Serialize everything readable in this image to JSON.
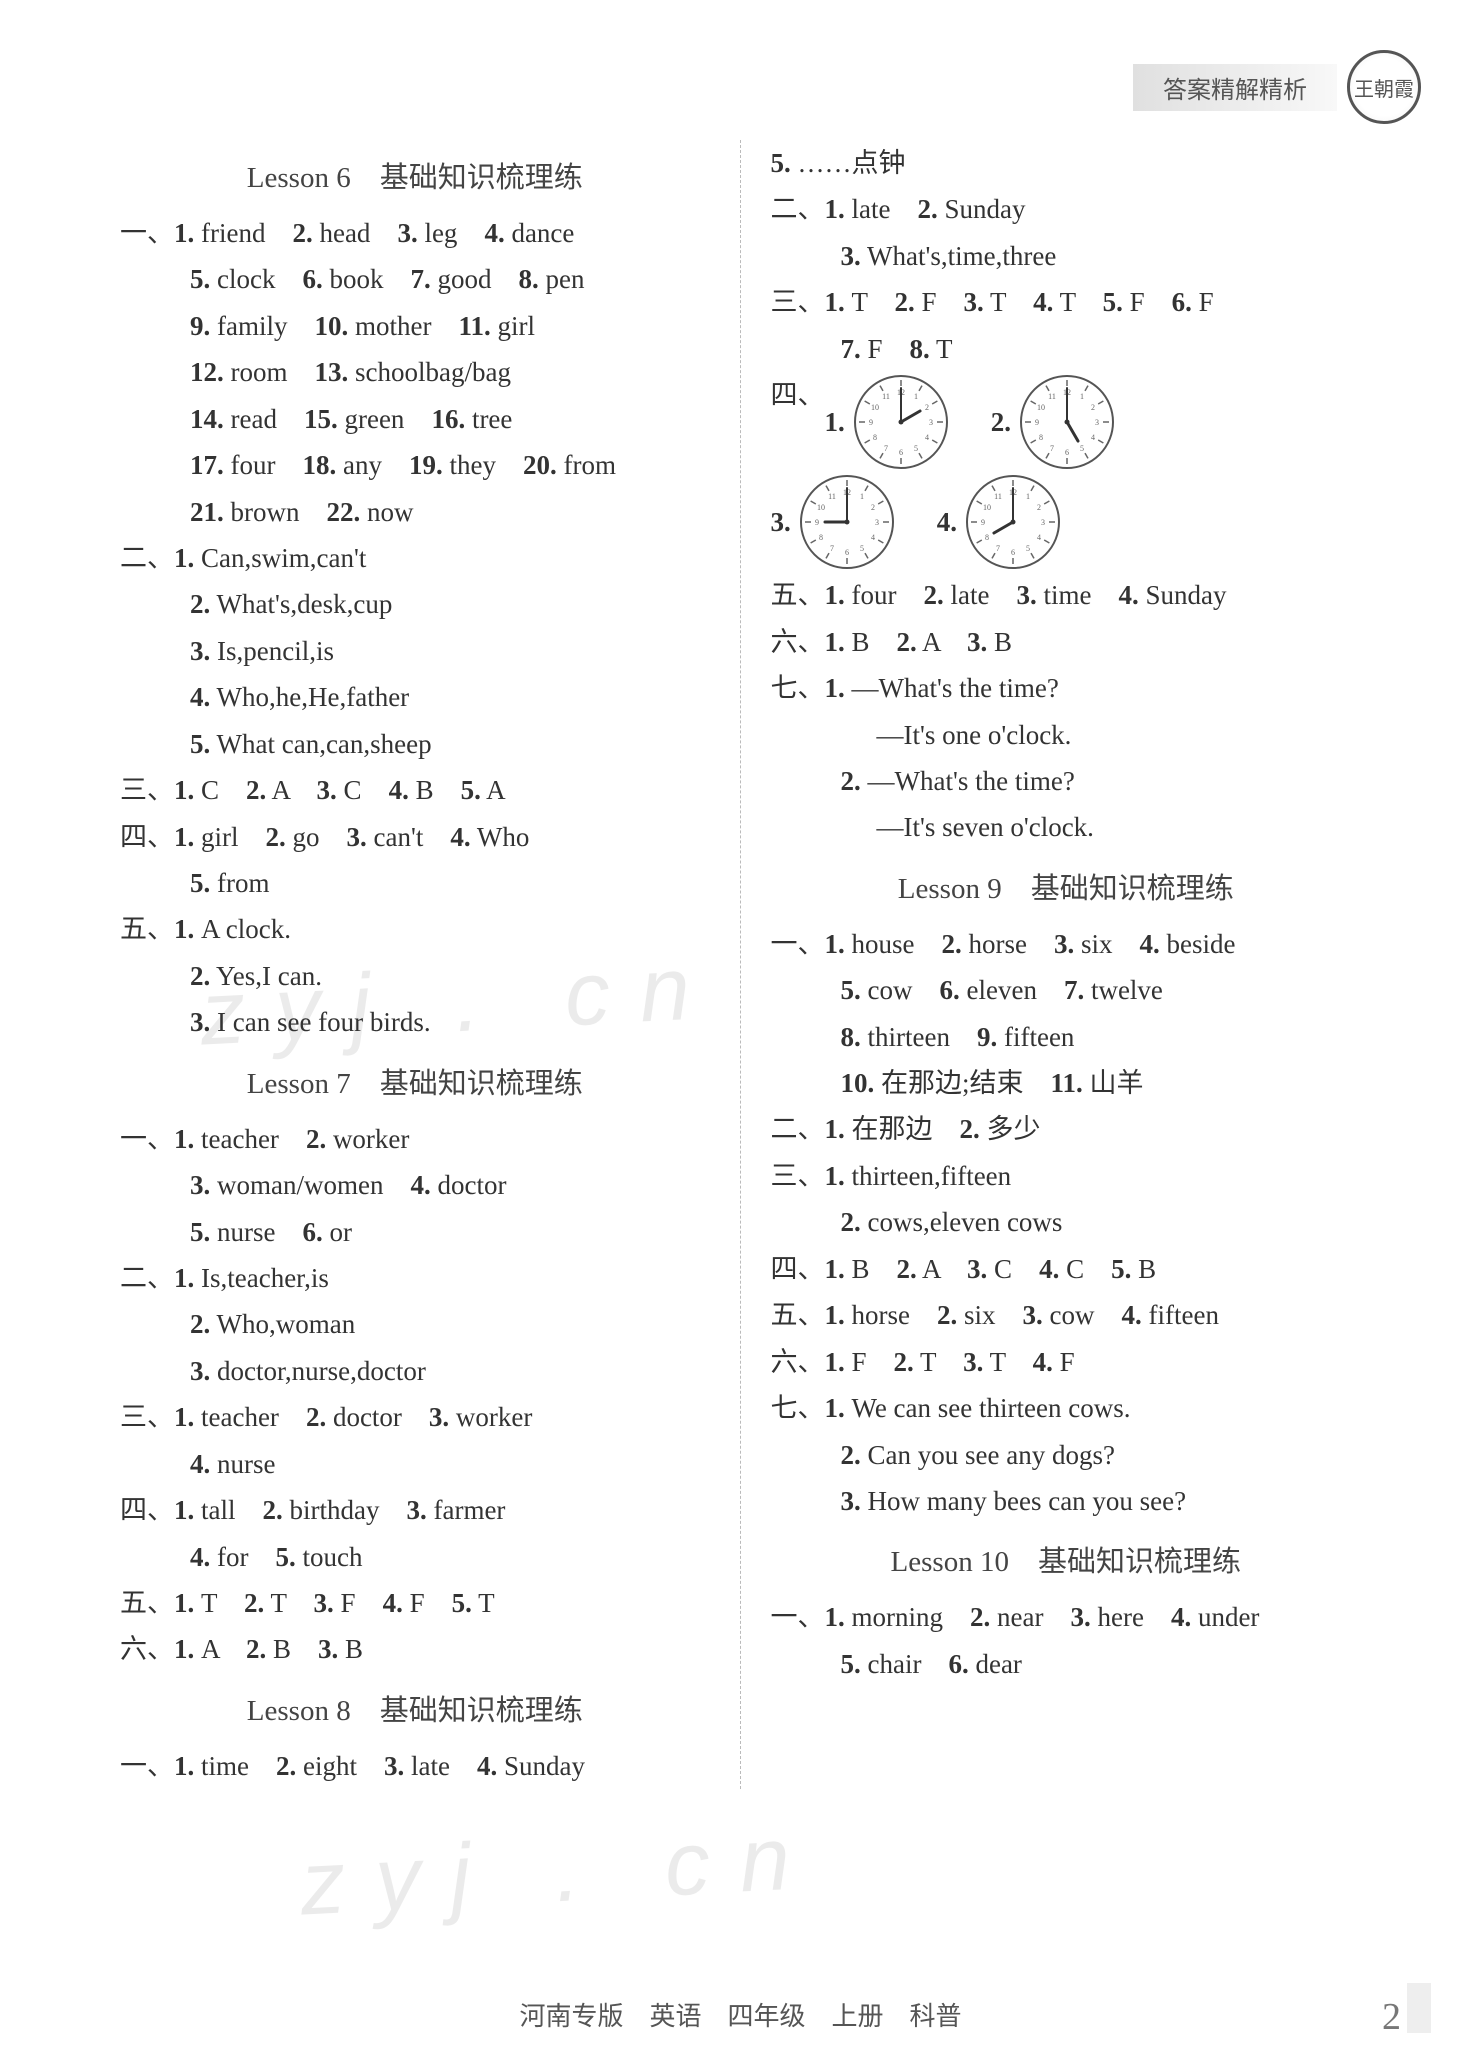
{
  "header": {
    "banner": "答案精解精析",
    "logo": "王朝霞"
  },
  "footer": {
    "text": "河南专版　英语　四年级　上册　科普",
    "page": "2"
  },
  "watermarks": [
    "zyj . cn",
    "zyj . cn"
  ],
  "left": {
    "l6": {
      "title": "Lesson 6　基础知识梳理练",
      "s1": [
        [
          [
            "1.",
            "friend"
          ],
          [
            "2.",
            "head"
          ],
          [
            "3.",
            "leg"
          ],
          [
            "4.",
            "dance"
          ]
        ],
        [
          [
            "5.",
            "clock"
          ],
          [
            "6.",
            "book"
          ],
          [
            "7.",
            "good"
          ],
          [
            "8.",
            "pen"
          ]
        ],
        [
          [
            "9.",
            "family"
          ],
          [
            "10.",
            "mother"
          ],
          [
            "11.",
            "girl"
          ]
        ],
        [
          [
            "12.",
            "room"
          ],
          [
            "13.",
            "schoolbag/bag"
          ]
        ],
        [
          [
            "14.",
            "read"
          ],
          [
            "15.",
            "green"
          ],
          [
            "16.",
            "tree"
          ]
        ],
        [
          [
            "17.",
            "four"
          ],
          [
            "18.",
            "any"
          ],
          [
            "19.",
            "they"
          ],
          [
            "20.",
            "from"
          ]
        ],
        [
          [
            "21.",
            "brown"
          ],
          [
            "22.",
            "now"
          ]
        ]
      ],
      "s2": [
        [
          [
            "1.",
            "Can,swim,can't"
          ]
        ],
        [
          [
            "2.",
            "What's,desk,cup"
          ]
        ],
        [
          [
            "3.",
            "Is,pencil,is"
          ]
        ],
        [
          [
            "4.",
            "Who,he,He,father"
          ]
        ],
        [
          [
            "5.",
            "What can,can,sheep"
          ]
        ]
      ],
      "s3": [
        [
          [
            "1.",
            "C"
          ],
          [
            "2.",
            "A"
          ],
          [
            "3.",
            "C"
          ],
          [
            "4.",
            "B"
          ],
          [
            "5.",
            "A"
          ]
        ]
      ],
      "s4": [
        [
          [
            "1.",
            "girl"
          ],
          [
            "2.",
            "go"
          ],
          [
            "3.",
            "can't"
          ],
          [
            "4.",
            "Who"
          ]
        ],
        [
          [
            "5.",
            "from"
          ]
        ]
      ],
      "s5": [
        [
          [
            "1.",
            "A clock."
          ]
        ],
        [
          [
            "2.",
            "Yes,I can."
          ]
        ],
        [
          [
            "3.",
            "I can see four birds."
          ]
        ]
      ]
    },
    "l7": {
      "title": "Lesson 7　基础知识梳理练",
      "s1": [
        [
          [
            "1.",
            "teacher"
          ],
          [
            "2.",
            "worker"
          ]
        ],
        [
          [
            "3.",
            "woman/women"
          ],
          [
            "4.",
            "doctor"
          ]
        ],
        [
          [
            "5.",
            "nurse"
          ],
          [
            "6.",
            "or"
          ]
        ]
      ],
      "s2": [
        [
          [
            "1.",
            "Is,teacher,is"
          ]
        ],
        [
          [
            "2.",
            "Who,woman"
          ]
        ],
        [
          [
            "3.",
            "doctor,nurse,doctor"
          ]
        ]
      ],
      "s3": [
        [
          [
            "1.",
            "teacher"
          ],
          [
            "2.",
            "doctor"
          ],
          [
            "3.",
            "worker"
          ]
        ],
        [
          [
            "4.",
            "nurse"
          ]
        ]
      ],
      "s4": [
        [
          [
            "1.",
            "tall"
          ],
          [
            "2.",
            "birthday"
          ],
          [
            "3.",
            "farmer"
          ]
        ],
        [
          [
            "4.",
            "for"
          ],
          [
            "5.",
            "touch"
          ]
        ]
      ],
      "s5": [
        [
          [
            "1.",
            "T"
          ],
          [
            "2.",
            "T"
          ],
          [
            "3.",
            "F"
          ],
          [
            "4.",
            "F"
          ],
          [
            "5.",
            "T"
          ]
        ]
      ],
      "s6": [
        [
          [
            "1.",
            "A"
          ],
          [
            "2.",
            "B"
          ],
          [
            "3.",
            "B"
          ]
        ]
      ]
    },
    "l8": {
      "title": "Lesson 8　基础知识梳理练",
      "s1": [
        [
          [
            "1.",
            "time"
          ],
          [
            "2.",
            "eight"
          ],
          [
            "3.",
            "late"
          ],
          [
            "4.",
            "Sunday"
          ]
        ]
      ]
    }
  },
  "right": {
    "l8cont": {
      "s1b": [
        [
          [
            "5.",
            "……点钟"
          ]
        ]
      ],
      "s2": [
        [
          [
            "1.",
            "late"
          ],
          [
            "2.",
            "Sunday"
          ]
        ],
        [
          [
            "3.",
            "What's,time,three"
          ]
        ]
      ],
      "s3": [
        [
          [
            "1.",
            "T"
          ],
          [
            "2.",
            "F"
          ],
          [
            "3.",
            "T"
          ],
          [
            "4.",
            "T"
          ],
          [
            "5.",
            "F"
          ],
          [
            "6.",
            "F"
          ]
        ],
        [
          [
            "7.",
            "F"
          ],
          [
            "8.",
            "T"
          ]
        ]
      ],
      "clocksLabel": "四、",
      "clocks": [
        {
          "n": "1.",
          "h": 2,
          "m": 0
        },
        {
          "n": "2.",
          "h": 5,
          "m": 0
        },
        {
          "n": "3.",
          "h": 9,
          "m": 0
        },
        {
          "n": "4.",
          "h": 8,
          "m": 0
        }
      ],
      "s5": [
        [
          [
            "1.",
            "four"
          ],
          [
            "2.",
            "late"
          ],
          [
            "3.",
            "time"
          ],
          [
            "4.",
            "Sunday"
          ]
        ]
      ],
      "s6": [
        [
          [
            "1.",
            "B"
          ],
          [
            "2.",
            "A"
          ],
          [
            "3.",
            "B"
          ]
        ]
      ],
      "s7": [
        [
          [
            "1.",
            "—What's the time?"
          ]
        ],
        [
          [
            "",
            "—It's one o'clock."
          ]
        ],
        [
          [
            "2.",
            "—What's the time?"
          ]
        ],
        [
          [
            "",
            "—It's seven o'clock."
          ]
        ]
      ]
    },
    "l9": {
      "title": "Lesson 9　基础知识梳理练",
      "s1": [
        [
          [
            "1.",
            "house"
          ],
          [
            "2.",
            "horse"
          ],
          [
            "3.",
            "six"
          ],
          [
            "4.",
            "beside"
          ]
        ],
        [
          [
            "5.",
            "cow"
          ],
          [
            "6.",
            "eleven"
          ],
          [
            "7.",
            "twelve"
          ]
        ],
        [
          [
            "8.",
            "thirteen"
          ],
          [
            "9.",
            "fifteen"
          ]
        ],
        [
          [
            "10.",
            "在那边;结束"
          ],
          [
            "11.",
            "山羊"
          ]
        ]
      ],
      "s2": [
        [
          [
            "1.",
            "在那边"
          ],
          [
            "2.",
            "多少"
          ]
        ]
      ],
      "s3": [
        [
          [
            "1.",
            "thirteen,fifteen"
          ]
        ],
        [
          [
            "2.",
            "cows,eleven cows"
          ]
        ]
      ],
      "s4": [
        [
          [
            "1.",
            "B"
          ],
          [
            "2.",
            "A"
          ],
          [
            "3.",
            "C"
          ],
          [
            "4.",
            "C"
          ],
          [
            "5.",
            "B"
          ]
        ]
      ],
      "s5": [
        [
          [
            "1.",
            "horse"
          ],
          [
            "2.",
            "six"
          ],
          [
            "3.",
            "cow"
          ],
          [
            "4.",
            "fifteen"
          ]
        ]
      ],
      "s6": [
        [
          [
            "1.",
            "F"
          ],
          [
            "2.",
            "T"
          ],
          [
            "3.",
            "T"
          ],
          [
            "4.",
            "F"
          ]
        ]
      ],
      "s7": [
        [
          [
            "1.",
            "We can see thirteen cows."
          ]
        ],
        [
          [
            "2.",
            "Can you see any dogs?"
          ]
        ],
        [
          [
            "3.",
            "How many bees can you see?"
          ]
        ]
      ]
    },
    "l10": {
      "title": "Lesson 10　基础知识梳理练",
      "s1": [
        [
          [
            "1.",
            "morning"
          ],
          [
            "2.",
            "near"
          ],
          [
            "3.",
            "here"
          ],
          [
            "4.",
            "under"
          ]
        ],
        [
          [
            "5.",
            "chair"
          ],
          [
            "6.",
            "dear"
          ]
        ]
      ]
    }
  },
  "sectionLabels": [
    "一、",
    "二、",
    "三、",
    "四、",
    "五、",
    "六、",
    "七、"
  ],
  "clockStyle": {
    "face": "#ffffff",
    "stroke": "#555555",
    "strokeWidth": 2,
    "tickColor": "#666666",
    "handColor": "#333333"
  }
}
